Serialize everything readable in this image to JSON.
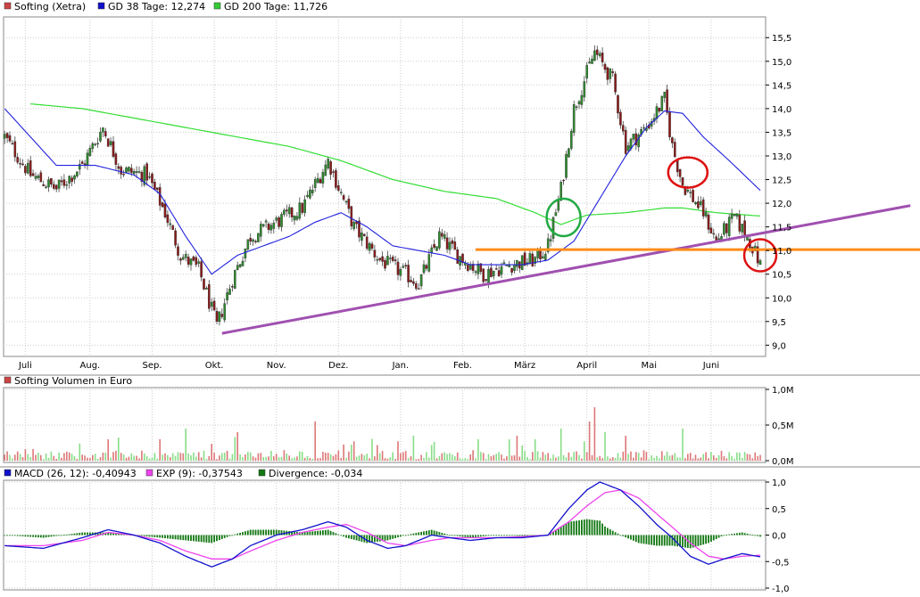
{
  "colors": {
    "candle_up": "#2e8b2e",
    "candle_down": "#8b1a1a",
    "gd38": "#2222dd",
    "gd200": "#33dd33",
    "trend": "#a050b0",
    "support": "#ff8c1a",
    "vol_up": "#88dd88",
    "vol_down": "#dd7777",
    "macd": "#1111cc",
    "exp": "#ee44ee",
    "divergence": "#117711",
    "circle_green": "#22aa44",
    "circle_red": "#dd1111",
    "grid": "#cccccc"
  },
  "legend_price": [
    {
      "label": "Softing (Xetra)",
      "color": "#cc4444"
    },
    {
      "label": "GD 38 Tage: 12,274",
      "color": "#1111cc"
    },
    {
      "label": "GD 200 Tage: 11,726",
      "color": "#33cc33"
    }
  ],
  "legend_volume": [
    {
      "label": "Softing Volumen in Euro",
      "color": "#cc4444"
    }
  ],
  "legend_macd": [
    {
      "label": "MACD (26, 12): -0,40943",
      "color": "#1111cc"
    },
    {
      "label": "EXP (9): -0,37543",
      "color": "#ee44ee"
    },
    {
      "label": "Divergence: -0,034",
      "color": "#117711"
    }
  ],
  "chart_data": [
    {
      "type": "candlestick",
      "title": "Softing (Xetra)",
      "x_ticks": [
        "Juli",
        "Aug.",
        "Sep.",
        "Okt.",
        "Nov.",
        "Dez.",
        "Jan.",
        "Feb.",
        "März",
        "April",
        "Mai",
        "Juni"
      ],
      "y_ticks": [
        "9,0",
        "9,5",
        "10,0",
        "10,5",
        "11,0",
        "11,5",
        "12,0",
        "12,5",
        "13,0",
        "13,5",
        "14,0",
        "14,5",
        "15,0",
        "15,5"
      ],
      "ylim": [
        8.8,
        15.9
      ],
      "close_anchors": [
        [
          0,
          13.4
        ],
        [
          10,
          12.6
        ],
        [
          20,
          12.3
        ],
        [
          30,
          12.8
        ],
        [
          38,
          13.6
        ],
        [
          45,
          12.7
        ],
        [
          55,
          12.6
        ],
        [
          62,
          11.8
        ],
        [
          68,
          10.9
        ],
        [
          75,
          10.6
        ],
        [
          82,
          9.4
        ],
        [
          88,
          10.4
        ],
        [
          95,
          11.3
        ],
        [
          105,
          11.6
        ],
        [
          115,
          11.9
        ],
        [
          125,
          12.9
        ],
        [
          135,
          11.5
        ],
        [
          145,
          10.8
        ],
        [
          155,
          10.5
        ],
        [
          160,
          10.3
        ],
        [
          168,
          11.3
        ],
        [
          175,
          10.9
        ],
        [
          185,
          10.5
        ],
        [
          195,
          10.7
        ],
        [
          205,
          10.8
        ],
        [
          210,
          11.1
        ],
        [
          215,
          12.3
        ],
        [
          220,
          14.0
        ],
        [
          228,
          15.2
        ],
        [
          235,
          14.6
        ],
        [
          240,
          13.2
        ],
        [
          248,
          13.6
        ],
        [
          255,
          14.2
        ],
        [
          258,
          13.2
        ],
        [
          262,
          12.4
        ],
        [
          270,
          11.8
        ],
        [
          275,
          11.2
        ],
        [
          282,
          11.7
        ],
        [
          288,
          11.2
        ],
        [
          292,
          10.7
        ]
      ],
      "gd38_anchors": [
        [
          0,
          14.0
        ],
        [
          10,
          13.4
        ],
        [
          20,
          12.8
        ],
        [
          35,
          12.8
        ],
        [
          50,
          12.6
        ],
        [
          60,
          12.2
        ],
        [
          70,
          11.3
        ],
        [
          80,
          10.5
        ],
        [
          90,
          10.9
        ],
        [
          100,
          11.1
        ],
        [
          110,
          11.3
        ],
        [
          120,
          11.6
        ],
        [
          130,
          11.8
        ],
        [
          140,
          11.5
        ],
        [
          150,
          11.1
        ],
        [
          160,
          11.0
        ],
        [
          170,
          10.9
        ],
        [
          180,
          10.7
        ],
        [
          190,
          10.7
        ],
        [
          200,
          10.7
        ],
        [
          210,
          10.8
        ],
        [
          220,
          11.2
        ],
        [
          230,
          12.1
        ],
        [
          240,
          13.0
        ],
        [
          248,
          13.6
        ],
        [
          255,
          13.95
        ],
        [
          262,
          13.9
        ],
        [
          270,
          13.4
        ],
        [
          280,
          12.9
        ],
        [
          292,
          12.27
        ]
      ],
      "gd200_anchors": [
        [
          10,
          14.1
        ],
        [
          30,
          14.0
        ],
        [
          60,
          13.7
        ],
        [
          90,
          13.4
        ],
        [
          110,
          13.2
        ],
        [
          130,
          12.9
        ],
        [
          150,
          12.5
        ],
        [
          170,
          12.25
        ],
        [
          190,
          12.1
        ],
        [
          205,
          11.8
        ],
        [
          215,
          11.55
        ],
        [
          225,
          11.75
        ],
        [
          240,
          11.8
        ],
        [
          255,
          11.9
        ],
        [
          262,
          11.9
        ],
        [
          275,
          11.8
        ],
        [
          292,
          11.73
        ]
      ],
      "trend_line": [
        [
          84,
          9.25
        ],
        [
          350,
          11.95
        ]
      ],
      "support_line": [
        [
          182,
          11.02
        ],
        [
          350,
          11.02
        ]
      ],
      "volume_ylim": [
        0,
        1.0
      ],
      "volume_y_ticks": [
        "0,0M",
        "0,5M",
        "1,0M"
      ],
      "macd_ylim": [
        -1.0,
        1.0
      ],
      "macd_y_ticks": [
        "-1,0",
        "-0,5",
        "0,0",
        "0,5",
        "1,0"
      ],
      "macd_anchors": [
        [
          0,
          -0.2
        ],
        [
          15,
          -0.25
        ],
        [
          30,
          -0.05
        ],
        [
          40,
          0.1
        ],
        [
          50,
          0.0
        ],
        [
          60,
          -0.15
        ],
        [
          70,
          -0.4
        ],
        [
          80,
          -0.6
        ],
        [
          88,
          -0.45
        ],
        [
          95,
          -0.2
        ],
        [
          105,
          0.0
        ],
        [
          115,
          0.1
        ],
        [
          125,
          0.25
        ],
        [
          132,
          0.15
        ],
        [
          140,
          -0.1
        ],
        [
          148,
          -0.25
        ],
        [
          155,
          -0.2
        ],
        [
          165,
          0.0
        ],
        [
          172,
          -0.05
        ],
        [
          180,
          -0.1
        ],
        [
          190,
          -0.05
        ],
        [
          200,
          -0.05
        ],
        [
          210,
          0.0
        ],
        [
          218,
          0.5
        ],
        [
          225,
          0.85
        ],
        [
          230,
          1.0
        ],
        [
          238,
          0.85
        ],
        [
          245,
          0.55
        ],
        [
          252,
          0.2
        ],
        [
          258,
          -0.05
        ],
        [
          265,
          -0.4
        ],
        [
          272,
          -0.55
        ],
        [
          278,
          -0.45
        ],
        [
          285,
          -0.35
        ],
        [
          292,
          -0.41
        ]
      ],
      "exp_anchors": [
        [
          0,
          -0.2
        ],
        [
          15,
          -0.2
        ],
        [
          30,
          -0.1
        ],
        [
          40,
          0.05
        ],
        [
          50,
          0.0
        ],
        [
          60,
          -0.1
        ],
        [
          70,
          -0.3
        ],
        [
          80,
          -0.45
        ],
        [
          88,
          -0.45
        ],
        [
          95,
          -0.3
        ],
        [
          105,
          -0.1
        ],
        [
          115,
          0.05
        ],
        [
          125,
          0.15
        ],
        [
          132,
          0.2
        ],
        [
          140,
          0.05
        ],
        [
          148,
          -0.15
        ],
        [
          155,
          -0.2
        ],
        [
          165,
          -0.1
        ],
        [
          172,
          -0.05
        ],
        [
          180,
          -0.05
        ],
        [
          190,
          -0.05
        ],
        [
          200,
          -0.03
        ],
        [
          210,
          0.0
        ],
        [
          218,
          0.25
        ],
        [
          225,
          0.55
        ],
        [
          232,
          0.8
        ],
        [
          238,
          0.85
        ],
        [
          245,
          0.7
        ],
        [
          252,
          0.4
        ],
        [
          258,
          0.15
        ],
        [
          265,
          -0.15
        ],
        [
          272,
          -0.4
        ],
        [
          278,
          -0.45
        ],
        [
          285,
          -0.4
        ],
        [
          292,
          -0.38
        ]
      ],
      "volume_spikes": [
        [
          228,
          0.75
        ],
        [
          226,
          0.55
        ],
        [
          215,
          0.45
        ],
        [
          240,
          0.35
        ],
        [
          262,
          0.45
        ],
        [
          70,
          0.45
        ],
        [
          90,
          0.4
        ],
        [
          120,
          0.55
        ],
        [
          158,
          0.35
        ],
        [
          183,
          0.3
        ],
        [
          195,
          0.3
        ],
        [
          205,
          0.3
        ],
        [
          232,
          0.4
        ],
        [
          60,
          0.3
        ],
        [
          40,
          0.3
        ]
      ],
      "n_days": 293
    }
  ]
}
